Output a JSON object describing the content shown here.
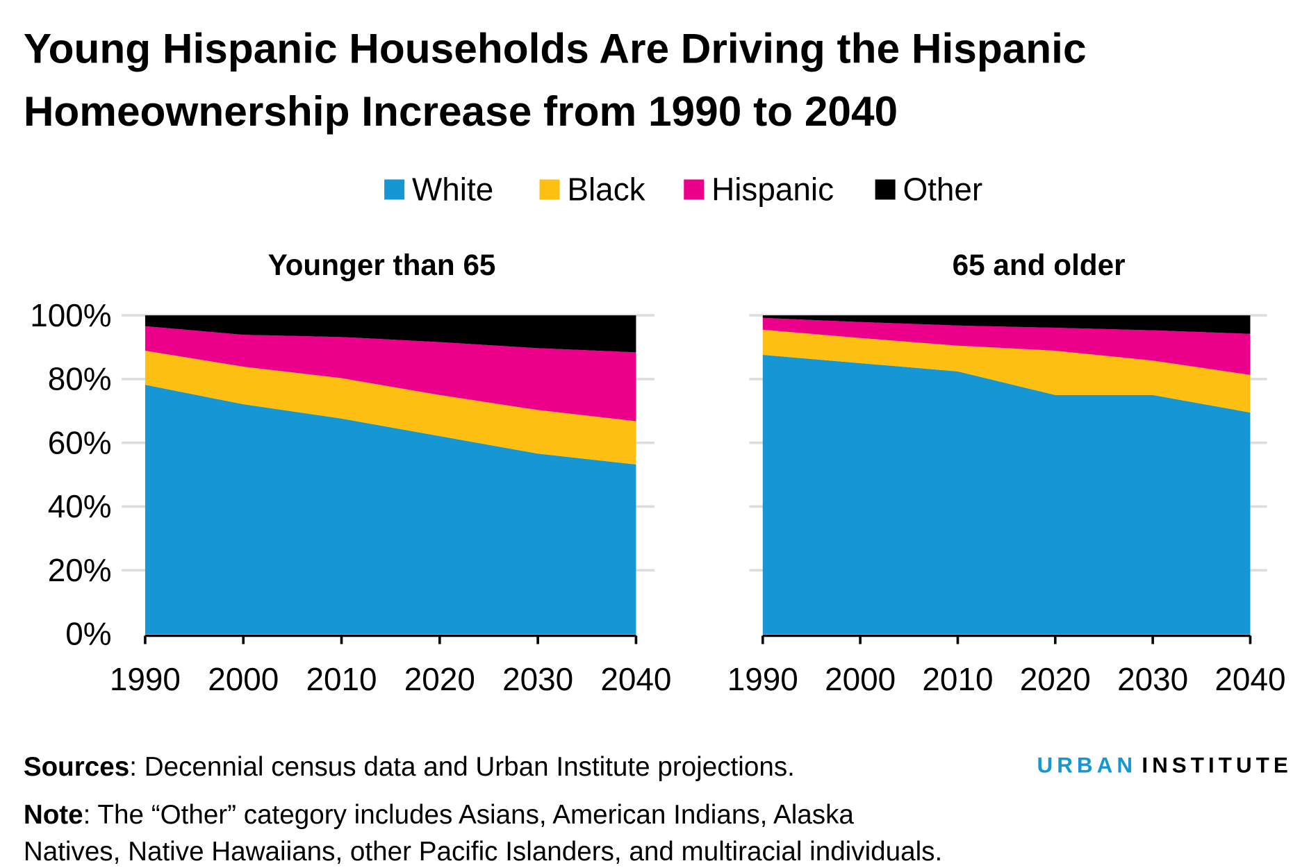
{
  "title_lines": [
    "Young Hispanic Households Are Driving the Hispanic",
    "Homeownership Increase from 1990 to 2040"
  ],
  "legend": [
    {
      "label": "White",
      "color": "#1696d2"
    },
    {
      "label": "Black",
      "color": "#fdbf11"
    },
    {
      "label": "Hispanic",
      "color": "#ec008b"
    },
    {
      "label": "Other",
      "color": "#000000"
    }
  ],
  "chart_data": [
    {
      "type": "area",
      "stacked": true,
      "title": "Younger than 65",
      "x": [
        1990,
        2000,
        2010,
        2020,
        2030,
        2040
      ],
      "xticks": [
        "1990",
        "2000",
        "2010",
        "2020",
        "2030",
        "2040"
      ],
      "yticks": [
        "0%",
        "20%",
        "40%",
        "60%",
        "80%",
        "100%"
      ],
      "ylim": [
        0,
        100
      ],
      "grid": true,
      "series": [
        {
          "name": "White",
          "values": [
            78.2,
            72.1,
            67.6,
            62.1,
            56.6,
            53.2
          ]
        },
        {
          "name": "Black",
          "values": [
            10.7,
            11.8,
            12.7,
            12.9,
            13.7,
            13.6
          ]
        },
        {
          "name": "Hispanic",
          "values": [
            7.7,
            10.0,
            12.9,
            16.6,
            19.4,
            21.6
          ]
        },
        {
          "name": "Other",
          "values": [
            3.4,
            6.1,
            6.8,
            8.4,
            10.3,
            11.6
          ]
        }
      ]
    },
    {
      "type": "area",
      "stacked": true,
      "title": "65 and older",
      "x": [
        1990,
        2000,
        2010,
        2020,
        2030,
        2040
      ],
      "xticks": [
        "1990",
        "2000",
        "2010",
        "2020",
        "2030",
        "2040"
      ],
      "ylim": [
        0,
        100
      ],
      "grid": true,
      "series": [
        {
          "name": "White",
          "values": [
            87.6,
            85.0,
            82.4,
            75.0,
            75.0,
            69.5
          ]
        },
        {
          "name": "Black",
          "values": [
            7.9,
            7.9,
            8.1,
            13.9,
            10.8,
            11.8
          ]
        },
        {
          "name": "Hispanic",
          "values": [
            3.7,
            5.0,
            6.3,
            7.2,
            9.5,
            12.9
          ]
        },
        {
          "name": "Other",
          "values": [
            0.8,
            2.1,
            3.2,
            3.9,
            4.7,
            5.8
          ]
        }
      ]
    }
  ],
  "footer": {
    "sources_label": "Sources",
    "sources_text": ": Decennial census data and Urban Institute projections.",
    "note_label": "Note",
    "note_text_1": ": The “Other” category includes Asians, American Indians, Alaska",
    "note_text_2": "Natives, Native Hawaiians, other Pacific Islanders, and multiracial individuals."
  },
  "logo": {
    "part1": "URBAN",
    "part2": "INSTITUTE",
    "color1": "#1696d2",
    "color2": "#000000"
  }
}
